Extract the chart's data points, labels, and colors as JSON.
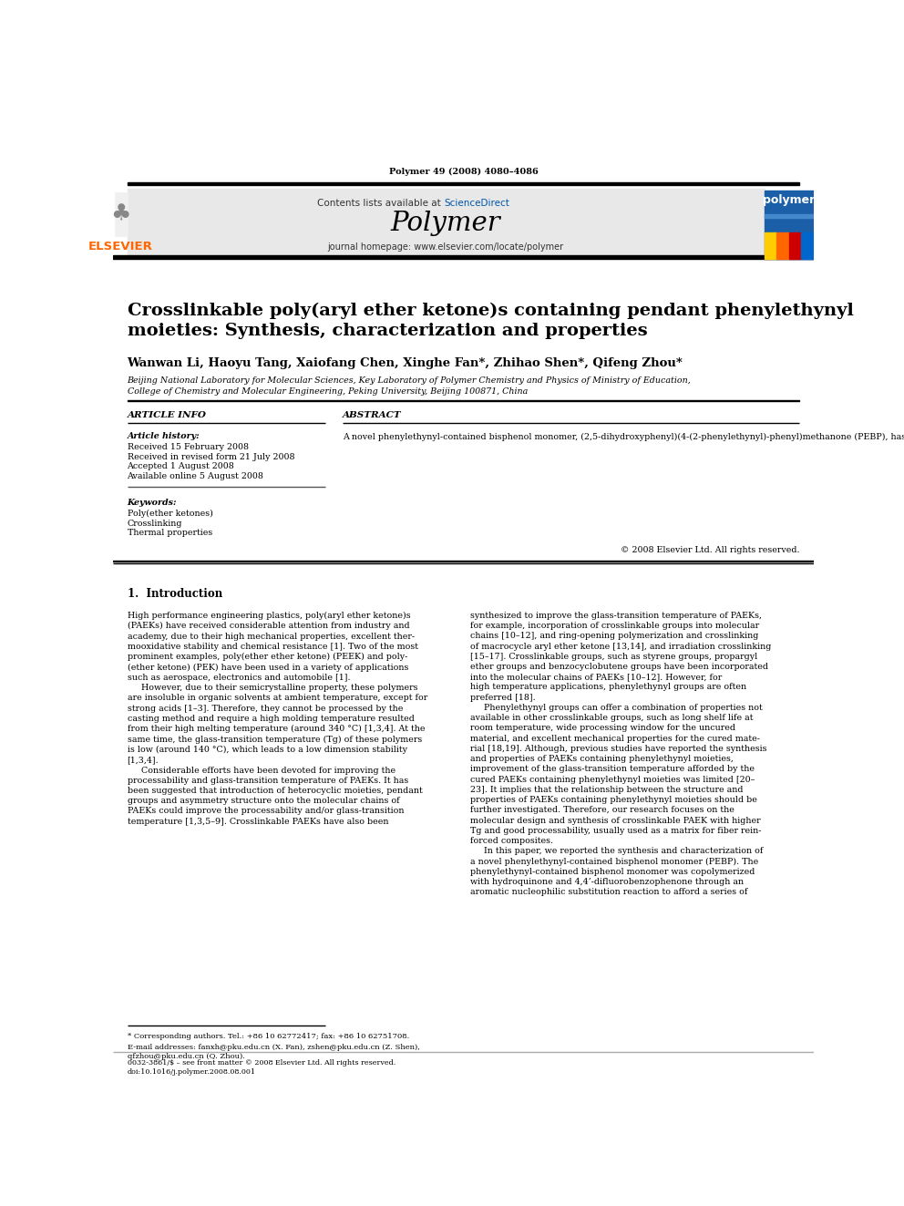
{
  "page_width": 9.92,
  "page_height": 13.23,
  "bg_color": "#ffffff",
  "header_journal_line": "Polymer 49 (2008) 4080–4086",
  "journal_header_bg": "#e8e8e8",
  "journal_name": "Polymer",
  "contents_text": "Contents lists available at ScienceDirect",
  "sciencedirect_color": "#0000cc",
  "journal_homepage": "journal homepage: www.elsevier.com/locate/polymer",
  "elsevier_color": "#ff6600",
  "elsevier_text": "ELSEVIER",
  "article_title": "Crosslinkable poly(aryl ether ketone)s containing pendant phenylethynyl\nmoieties: Synthesis, characterization and properties",
  "authors": "Wanwan Li, Haoyu Tang, Xaiofang Chen, Xinghe Fan*, Zhihao Shen*, Qifeng Zhou*",
  "affiliation1": "Beijing National Laboratory for Molecular Sciences, Key Laboratory of Polymer Chemistry and Physics of Ministry of Education,",
  "affiliation2": "College of Chemistry and Molecular Engineering, Peking University, Beijing 100871, China",
  "article_info_title": "ARTICLE INFO",
  "article_history_title": "Article history:",
  "article_history": [
    "Received 15 February 2008",
    "Received in revised form 21 July 2008",
    "Accepted 1 August 2008",
    "Available online 5 August 2008"
  ],
  "keywords_title": "Keywords:",
  "keywords": [
    "Poly(ether ketones)",
    "Crosslinking",
    "Thermal properties"
  ],
  "abstract_title": "ABSTRACT",
  "abstract_text": "A novel phenylethynyl-contained bisphenol monomer, (2,5-dihydroxyphenyl)(4-(2-phenylethynyl)-phenyl)methanone (PEBP), has been synthesized and characterized. The resultant monomer was copolymerized with hydroquinone and 4,4’-difluorobenzophenone by means of an aromatic nucleophilic substitution reaction to provide a series of crosslinkable poly(aryl ether ketone)s containing pendant phenylethynyl moieties (PE-PAEKs). The solubility of PE-PAEKs tended to be improved with the increase in PEBP content. Wide-angle X-ray diffraction (WAXD) results showed that introduction of bulky pendant groups into molecular chains led to decrease in crystallinity. PE-PAEKs were successfully cured upon heating. Dynamic mechanical analysis (DMA) results indicated that the glass-transition temperature (Tg) of the cured PE-PAEKs was increased. Thermogravimetric analysis (TGA) results implied that the thermal stability of the cured PE-PAEKs was excellent.",
  "copyright": "© 2008 Elsevier Ltd. All rights reserved.",
  "section1_title": "1.  Introduction",
  "intro_col1": "High performance engineering plastics, poly(aryl ether ketone)s\n(PAEKs) have received considerable attention from industry and\nacademy, due to their high mechanical properties, excellent ther-\nmooxidative stability and chemical resistance [1]. Two of the most\nprominent examples, poly(ether ether ketone) (PEEK) and poly-\n(ether ketone) (PEK) have been used in a variety of applications\nsuch as aerospace, electronics and automobile [1].\n     However, due to their semicrystalline property, these polymers\nare insoluble in organic solvents at ambient temperature, except for\nstrong acids [1–3]. Therefore, they cannot be processed by the\ncasting method and require a high molding temperature resulted\nfrom their high melting temperature (around 340 °C) [1,3,4]. At the\nsame time, the glass-transition temperature (Tg) of these polymers\nis low (around 140 °C), which leads to a low dimension stability\n[1,3,4].\n     Considerable efforts have been devoted for improving the\nprocessability and glass-transition temperature of PAEKs. It has\nbeen suggested that introduction of heterocyclic moieties, pendant\ngroups and asymmetry structure onto the molecular chains of\nPAEKs could improve the processability and/or glass-transition\ntemperature [1,3,5–9]. Crosslinkable PAEKs have also been",
  "intro_col2": "synthesized to improve the glass-transition temperature of PAEKs,\nfor example, incorporation of crosslinkable groups into molecular\nchains [10–12], and ring-opening polymerization and crosslinking\nof macrocycle aryl ether ketone [13,14], and irradiation crosslinking\n[15–17]. Crosslinkable groups, such as styrene groups, propargyl\nether groups and benzocyclobutene groups have been incorporated\ninto the molecular chains of PAEKs [10–12]. However, for\nhigh temperature applications, phenylethynyl groups are often\npreferred [18].\n     Phenylethynyl groups can offer a combination of properties not\navailable in other crosslinkable groups, such as long shelf life at\nroom temperature, wide processing window for the uncured\nmaterial, and excellent mechanical properties for the cured mate-\nrial [18,19]. Although, previous studies have reported the synthesis\nand properties of PAEKs containing phenylethynyl moieties,\nimprovement of the glass-transition temperature afforded by the\ncured PAEKs containing phenylethynyl moieties was limited [20–\n23]. It implies that the relationship between the structure and\nproperties of PAEKs containing phenylethynyl moieties should be\nfurther investigated. Therefore, our research focuses on the\nmolecular design and synthesis of crosslinkable PAEK with higher\nTg and good processability, usually used as a matrix for fiber rein-\nforced composites.\n     In this paper, we reported the synthesis and characterization of\na novel phenylethynyl-contained bisphenol monomer (PEBP). The\nphenylethynyl-contained bisphenol monomer was copolymerized\nwith hydroquinone and 4,4’-difluorobenzophenone through an\naromatic nucleophilic substitution reaction to afford a series of",
  "footnote_star": "* Corresponding authors. Tel.: +86 10 62772417; fax: +86 10 62751708.",
  "footnote_email": "E-mail addresses: fanxh@pku.edu.cn (X. Fan), zshen@pku.edu.cn (Z. Shen),\nqfzhou@pku.edu.cn (Q. Zhou).",
  "footer_line1": "0032-3861/$ – see front matter © 2008 Elsevier Ltd. All rights reserved.",
  "footer_line2": "doi:10.1016/j.polymer.2008.08.001"
}
